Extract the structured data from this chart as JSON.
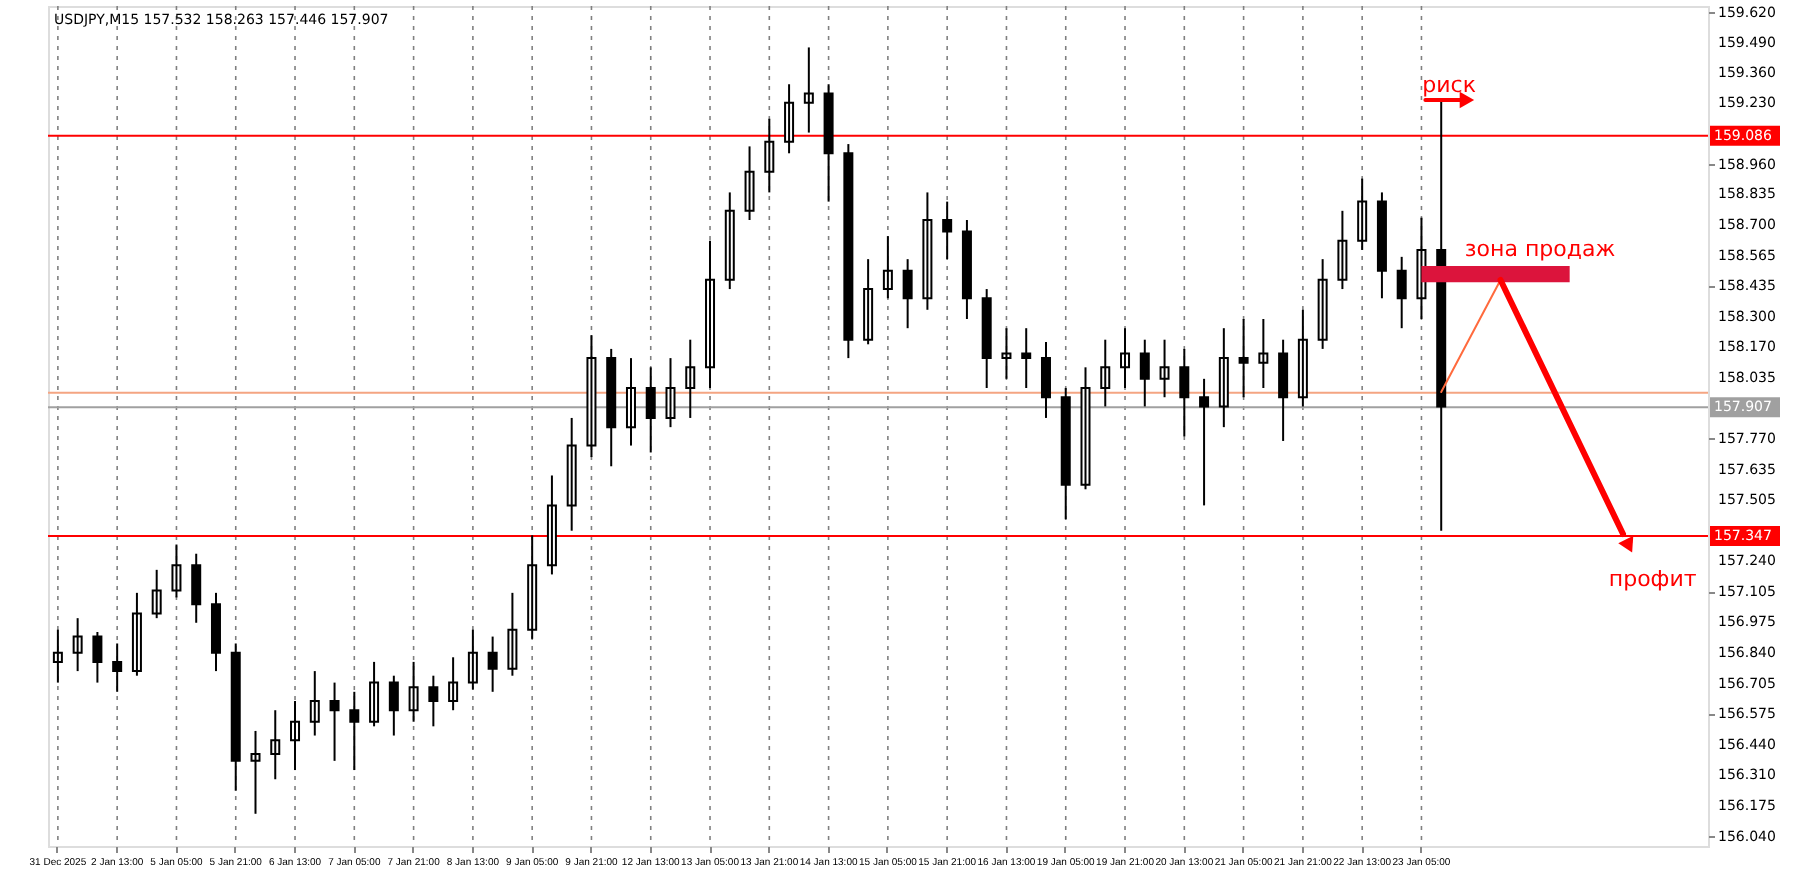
{
  "chart_data": {
    "type": "candlestick",
    "title": "USDJPY,M15  157.532 158.263 157.446 157.907",
    "color": "#000000",
    "categories": [
      "31 Dec 2025",
      null,
      null,
      "2 Jan 13:00",
      null,
      null,
      "5 Jan 05:00",
      null,
      null,
      "5 Jan 21:00",
      null,
      null,
      "6 Jan 13:00",
      null,
      null,
      "7 Jan 05:00",
      null,
      null,
      "7 Jan 21:00",
      null,
      null,
      "8 Jan 13:00",
      null,
      null,
      "9 Jan 05:00",
      null,
      null,
      "9 Jan 21:00",
      null,
      null,
      "12 Jan 13:00",
      null,
      null,
      "13 Jan 05:00",
      null,
      null,
      "13 Jan 21:00",
      null,
      null,
      "14 Jan 13:00",
      null,
      null,
      "15 Jan 05:00",
      null,
      null,
      "15 Jan 21:00",
      null,
      null,
      "16 Jan 13:00",
      null,
      null,
      "19 Jan 05:00",
      null,
      null,
      "19 Jan 21:00",
      null,
      null,
      "20 Jan 13:00",
      null,
      null,
      "21 Jan 05:00",
      null,
      null,
      "21 Jan 21:00",
      null,
      null,
      "22 Jan 13:00",
      null,
      null,
      "23 Jan 05:00",
      null,
      null,
      null,
      null,
      null,
      null,
      null,
      null,
      null,
      null,
      null,
      null,
      null,
      null
    ],
    "ohlc": [
      [
        156.8,
        156.94,
        156.71,
        156.84
      ],
      [
        156.84,
        156.99,
        156.76,
        156.91
      ],
      [
        156.91,
        156.93,
        156.71,
        156.8
      ],
      [
        156.8,
        156.88,
        156.67,
        156.76
      ],
      [
        156.76,
        157.1,
        156.74,
        157.01
      ],
      [
        157.01,
        157.2,
        156.99,
        157.11
      ],
      [
        157.11,
        157.31,
        157.08,
        157.22
      ],
      [
        157.22,
        157.27,
        156.97,
        157.05
      ],
      [
        157.05,
        157.1,
        156.76,
        156.84
      ],
      [
        156.84,
        156.88,
        156.24,
        156.37
      ],
      [
        156.37,
        156.5,
        156.14,
        156.4
      ],
      [
        156.4,
        156.59,
        156.29,
        156.46
      ],
      [
        156.46,
        156.63,
        156.33,
        156.54
      ],
      [
        156.54,
        156.76,
        156.48,
        156.63
      ],
      [
        156.63,
        156.71,
        156.37,
        156.59
      ],
      [
        156.59,
        156.67,
        156.33,
        156.54
      ],
      [
        156.54,
        156.8,
        156.52,
        156.71
      ],
      [
        156.71,
        156.74,
        156.48,
        156.59
      ],
      [
        156.59,
        156.8,
        156.54,
        156.69
      ],
      [
        156.69,
        156.74,
        156.52,
        156.63
      ],
      [
        156.63,
        156.82,
        156.59,
        156.71
      ],
      [
        156.71,
        156.94,
        156.68,
        156.84
      ],
      [
        156.84,
        156.91,
        156.67,
        156.77
      ],
      [
        156.77,
        157.1,
        156.74,
        156.94
      ],
      [
        156.94,
        157.35,
        156.9,
        157.22
      ],
      [
        157.22,
        157.61,
        157.18,
        157.48
      ],
      [
        157.48,
        157.86,
        157.37,
        157.74
      ],
      [
        157.74,
        158.22,
        157.69,
        158.12
      ],
      [
        158.12,
        158.16,
        157.65,
        157.82
      ],
      [
        157.82,
        158.12,
        157.74,
        157.99
      ],
      [
        157.99,
        158.08,
        157.71,
        157.86
      ],
      [
        157.86,
        158.12,
        157.82,
        157.99
      ],
      [
        157.99,
        158.2,
        157.86,
        158.08
      ],
      [
        158.08,
        158.63,
        157.99,
        158.46
      ],
      [
        158.46,
        158.84,
        158.42,
        158.76
      ],
      [
        158.76,
        159.04,
        158.72,
        158.93
      ],
      [
        158.93,
        159.16,
        158.84,
        159.06
      ],
      [
        159.06,
        159.31,
        159.01,
        159.23
      ],
      [
        159.23,
        159.47,
        159.1,
        159.27
      ],
      [
        159.27,
        159.31,
        158.8,
        159.01
      ],
      [
        159.01,
        159.05,
        158.12,
        158.2
      ],
      [
        158.2,
        158.55,
        158.18,
        158.42
      ],
      [
        158.42,
        158.65,
        158.38,
        158.5
      ],
      [
        158.5,
        158.55,
        158.25,
        158.38
      ],
      [
        158.38,
        158.84,
        158.33,
        158.72
      ],
      [
        158.72,
        158.8,
        158.55,
        158.67
      ],
      [
        158.67,
        158.72,
        158.29,
        158.38
      ],
      [
        158.38,
        158.42,
        157.99,
        158.12
      ],
      [
        158.12,
        158.25,
        158.03,
        158.14
      ],
      [
        158.14,
        158.25,
        157.99,
        158.12
      ],
      [
        158.12,
        158.19,
        157.86,
        157.95
      ],
      [
        157.95,
        157.99,
        157.42,
        157.57
      ],
      [
        157.57,
        158.08,
        157.55,
        157.99
      ],
      [
        157.99,
        158.2,
        157.91,
        158.08
      ],
      [
        158.08,
        158.25,
        157.99,
        158.14
      ],
      [
        158.14,
        158.2,
        157.91,
        158.03
      ],
      [
        158.03,
        158.2,
        157.95,
        158.08
      ],
      [
        158.08,
        158.16,
        157.78,
        157.95
      ],
      [
        157.95,
        158.03,
        157.48,
        157.91
      ],
      [
        157.91,
        158.25,
        157.82,
        158.12
      ],
      [
        158.12,
        158.29,
        157.95,
        158.1
      ],
      [
        158.1,
        158.29,
        157.99,
        158.14
      ],
      [
        158.14,
        158.2,
        157.76,
        157.95
      ],
      [
        157.95,
        158.33,
        157.91,
        158.2
      ],
      [
        158.2,
        158.55,
        158.16,
        158.46
      ],
      [
        158.46,
        158.76,
        158.42,
        158.63
      ],
      [
        158.63,
        158.9,
        158.59,
        158.8
      ],
      [
        158.8,
        158.84,
        158.38,
        158.5
      ],
      [
        158.5,
        158.56,
        158.25,
        158.38
      ],
      [
        158.38,
        158.73,
        158.29,
        158.59
      ],
      [
        158.59,
        159.25,
        157.37,
        157.91
      ],
      null,
      null,
      null,
      null,
      null,
      null,
      null,
      null,
      null,
      null,
      null,
      null,
      null
    ],
    "ylim": [
      156.0,
      159.65
    ],
    "yticks": [
      {
        "value": 159.62,
        "label": "159.620"
      },
      {
        "value": 159.49,
        "label": "159.490"
      },
      {
        "value": 159.36,
        "label": "159.360"
      },
      {
        "value": 159.23,
        "label": "159.230"
      },
      {
        "value": 158.96,
        "label": "158.960"
      },
      {
        "value": 158.835,
        "label": "158.835"
      },
      {
        "value": 158.7,
        "label": "158.700"
      },
      {
        "value": 158.565,
        "label": "158.565"
      },
      {
        "value": 158.435,
        "label": "158.435"
      },
      {
        "value": 158.3,
        "label": "158.300"
      },
      {
        "value": 158.17,
        "label": "158.170"
      },
      {
        "value": 158.035,
        "label": "158.035"
      },
      {
        "value": 157.77,
        "label": "157.770"
      },
      {
        "value": 157.635,
        "label": "157.635"
      },
      {
        "value": 157.505,
        "label": "157.505"
      },
      {
        "value": 157.24,
        "label": "157.240"
      },
      {
        "value": 157.105,
        "label": "157.105"
      },
      {
        "value": 156.975,
        "label": "156.975"
      },
      {
        "value": 156.84,
        "label": "156.840"
      },
      {
        "value": 156.705,
        "label": "156.705"
      },
      {
        "value": 156.575,
        "label": "156.575"
      },
      {
        "value": 156.44,
        "label": "156.440"
      },
      {
        "value": 156.31,
        "label": "156.310"
      },
      {
        "value": 156.175,
        "label": "156.175"
      },
      {
        "value": 156.04,
        "label": "156.040"
      }
    ],
    "ref_lines": [
      {
        "axis": "y",
        "value": 159.086,
        "label": "159.086",
        "color": "#ff0000"
      },
      {
        "axis": "y",
        "value": 157.347,
        "label": "157.347",
        "color": "#ff0000"
      },
      {
        "axis": "y",
        "value": 157.97,
        "color": "#f4a582"
      },
      {
        "axis": "y",
        "value": 157.907,
        "label": "157.907",
        "color": "#a0a0a0"
      }
    ],
    "bands": [
      {
        "axis": "y",
        "from": 158.45,
        "to": 158.52,
        "label": "зона продаж",
        "color": "#dc143c"
      }
    ],
    "annotations": [
      "риск",
      {
        "text": "профит",
        "y": 157.347
      }
    ],
    "grid": "x",
    "legend": false
  }
}
